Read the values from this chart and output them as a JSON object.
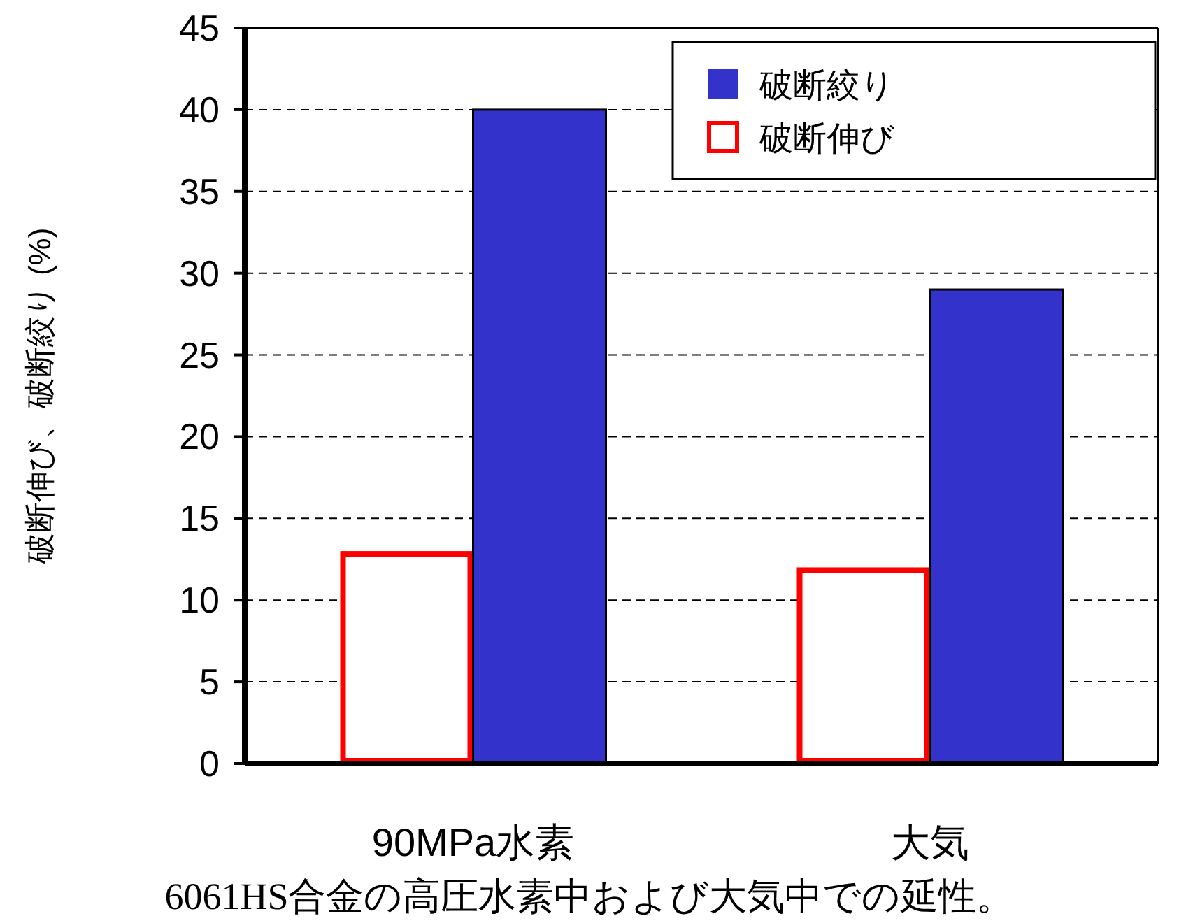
{
  "chart_data": {
    "type": "bar",
    "ylabel": "破断伸び、破断絞り (%)",
    "categories": [
      "90MPa水素",
      "大気"
    ],
    "series": [
      {
        "name": "破断伸び",
        "color": "#ff0000",
        "values": [
          13,
          12
        ]
      },
      {
        "name": "破断絞り",
        "color": "#3333cc",
        "values": [
          40,
          29
        ]
      }
    ],
    "ylim": [
      0,
      45
    ],
    "yticks": [
      0,
      5,
      10,
      15,
      20,
      25,
      30,
      35,
      40,
      45
    ],
    "grid": "y",
    "legend": "top right",
    "annotations": [
      "6061HS合金の高圧水素中および大気中での延性。"
    ]
  }
}
